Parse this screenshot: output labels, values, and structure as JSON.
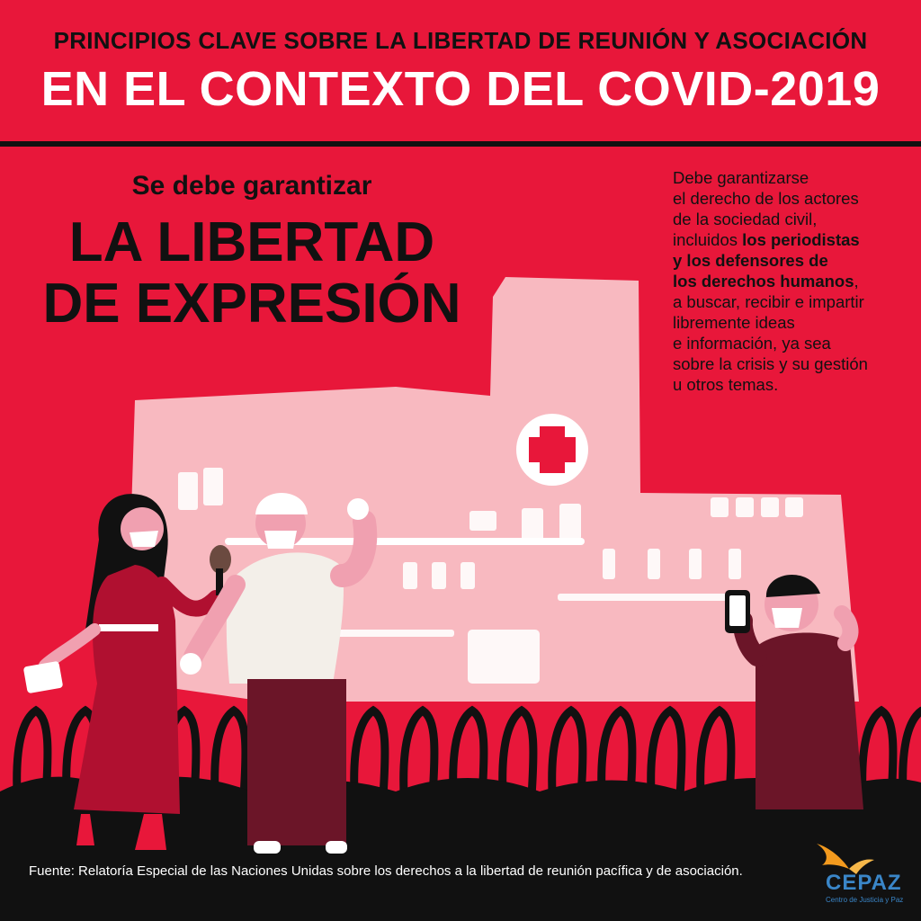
{
  "header": {
    "line1": "PRINCIPIOS CLAVE SOBRE LA LIBERTAD DE REUNIÓN Y ASOCIACIÓN",
    "line2": "EN EL CONTEXTO DEL COVID-2019"
  },
  "main": {
    "subhead": "Se debe garantizar",
    "headline_1": "LA LIBERTAD",
    "headline_2": "DE EXPRESIÓN"
  },
  "body": {
    "l1": "Debe garantizarse",
    "l2": "el derecho de los actores",
    "l3": "de la sociedad civil,",
    "l4a": "incluidos ",
    "l4b": "los periodistas",
    "l5": "y los defensores de",
    "l6": "los derechos humanos",
    "l6c": ",",
    "l7": "a buscar, recibir e impartir",
    "l8": "libremente ideas",
    "l9": "e información, ya sea",
    "l10": "sobre la crisis y su gestión",
    "l11": "u otros temas."
  },
  "footer": {
    "source": "Fuente: Relatoría Especial de las Naciones Unidas sobre los derechos a la libertad de reunión pacífica y de asociación."
  },
  "logo": {
    "name": "CEPAZ",
    "tagline": "Centro de Justicia y Paz"
  },
  "colors": {
    "background": "#e8173a",
    "building": "#f8b9c0",
    "dark": "#111111",
    "dress": "#b01030",
    "shirt_dark": "#6b1528"
  }
}
